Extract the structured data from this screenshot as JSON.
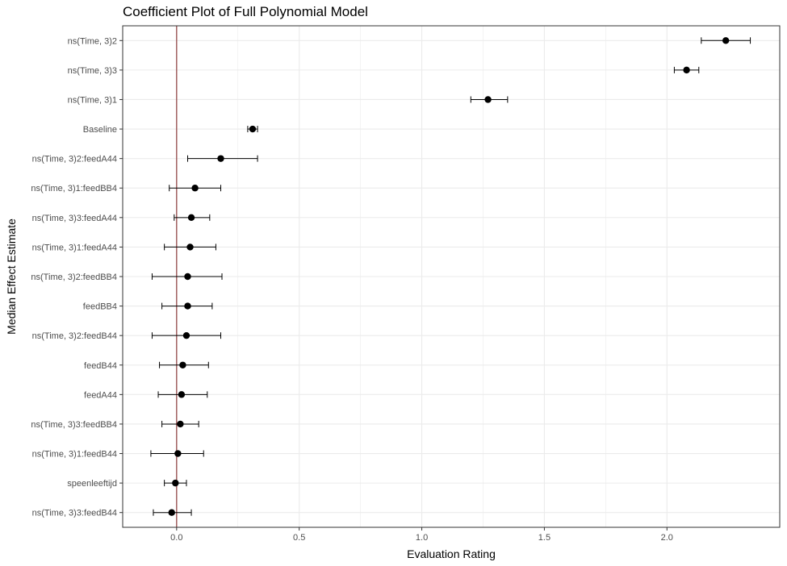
{
  "chart_data": {
    "type": "scatter",
    "title": "Coefficient Plot of Full Polynomial Model",
    "xlabel": "Evaluation Rating",
    "ylabel": "Median Effect Estimate",
    "xlim": [
      -0.22,
      2.46
    ],
    "x_ticks": [
      0.0,
      0.5,
      1.0,
      1.5,
      2.0
    ],
    "x_tick_labels": [
      "0.0",
      "0.5",
      "1.0",
      "1.5",
      "2.0"
    ],
    "reference_line_x": 0,
    "grid": true,
    "colors": {
      "points": "#000000",
      "reference_line": "#8b3a3a",
      "grid": "#ebebeb",
      "panel_border": "#333333"
    },
    "categories": [
      "ns(Time, 3)2",
      "ns(Time, 3)3",
      "ns(Time, 3)1",
      "Baseline",
      "ns(Time, 3)2:feedA44",
      "ns(Time, 3)1:feedBB4",
      "ns(Time, 3)3:feedA44",
      "ns(Time, 3)1:feedA44",
      "ns(Time, 3)2:feedBB4",
      "feedBB4",
      "ns(Time, 3)2:feedB44",
      "feedB44",
      "feedA44",
      "ns(Time, 3)3:feedBB4",
      "ns(Time, 3)1:feedB44",
      "speenleeftijd",
      "ns(Time, 3)3:feedB44"
    ],
    "series": [
      {
        "estimate": [
          2.24,
          2.08,
          1.27,
          0.31,
          0.18,
          0.075,
          0.06,
          0.055,
          0.045,
          0.045,
          0.04,
          0.025,
          0.02,
          0.015,
          0.005,
          -0.005,
          -0.02
        ],
        "lower": [
          2.14,
          2.03,
          1.2,
          0.29,
          0.045,
          -0.03,
          -0.01,
          -0.05,
          -0.1,
          -0.06,
          -0.1,
          -0.07,
          -0.075,
          -0.06,
          -0.105,
          -0.05,
          -0.095
        ],
        "upper": [
          2.34,
          2.13,
          1.35,
          0.33,
          0.33,
          0.18,
          0.135,
          0.16,
          0.185,
          0.145,
          0.18,
          0.13,
          0.125,
          0.09,
          0.11,
          0.04,
          0.06
        ]
      }
    ]
  }
}
